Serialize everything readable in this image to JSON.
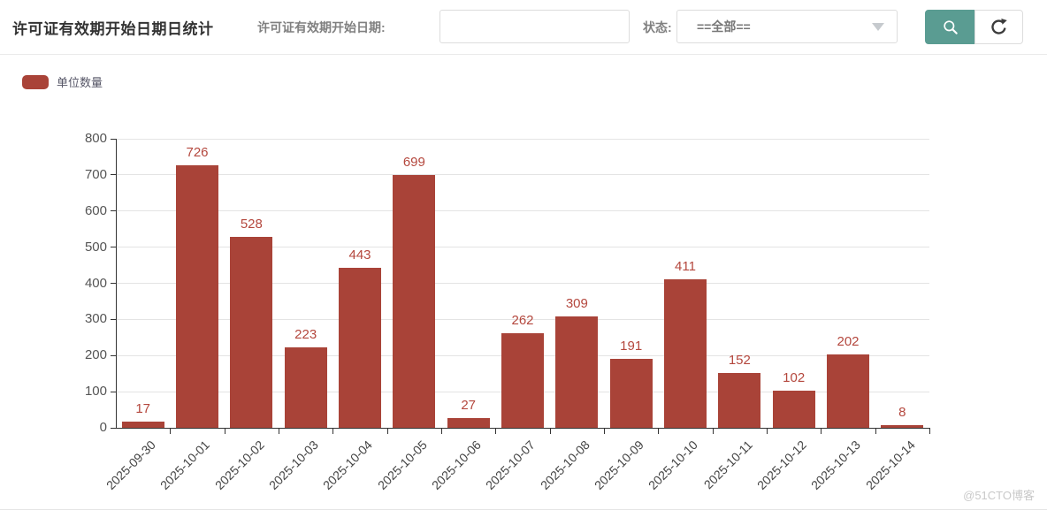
{
  "header": {
    "title": "许可证有效期开始日期日统计",
    "date_filter": {
      "label": "许可证有效期开始日期:",
      "value": "",
      "placeholder": ""
    },
    "status_filter": {
      "label": "状态:",
      "selected": "==全部=="
    },
    "search_button": {
      "icon": "search",
      "color": "#5a9c92"
    },
    "refresh_button": {
      "icon": "refresh"
    }
  },
  "legend": {
    "label": "单位数量",
    "color": "#a94338"
  },
  "chart_data": {
    "type": "bar",
    "title": "许可证有效期开始日期日统计",
    "series_name": "单位数量",
    "categories": [
      "2025-09-30",
      "2025-10-01",
      "2025-10-02",
      "2025-10-03",
      "2025-10-04",
      "2025-10-05",
      "2025-10-06",
      "2025-10-07",
      "2025-10-08",
      "2025-10-09",
      "2025-10-10",
      "2025-10-11",
      "2025-10-12",
      "2025-10-13",
      "2025-10-14"
    ],
    "values": [
      17,
      726,
      528,
      223,
      443,
      699,
      27,
      262,
      309,
      191,
      411,
      152,
      102,
      202,
      8
    ],
    "xlabel": "",
    "ylabel": "",
    "ylim": [
      0,
      800
    ],
    "ytick_step": 100,
    "grid": true,
    "legend_position": "top-left",
    "x_label_rotation": -45,
    "bar_color": "#a94338",
    "value_label_color": "#b4473d"
  },
  "watermark": {
    "text": "@51CTO博客"
  }
}
